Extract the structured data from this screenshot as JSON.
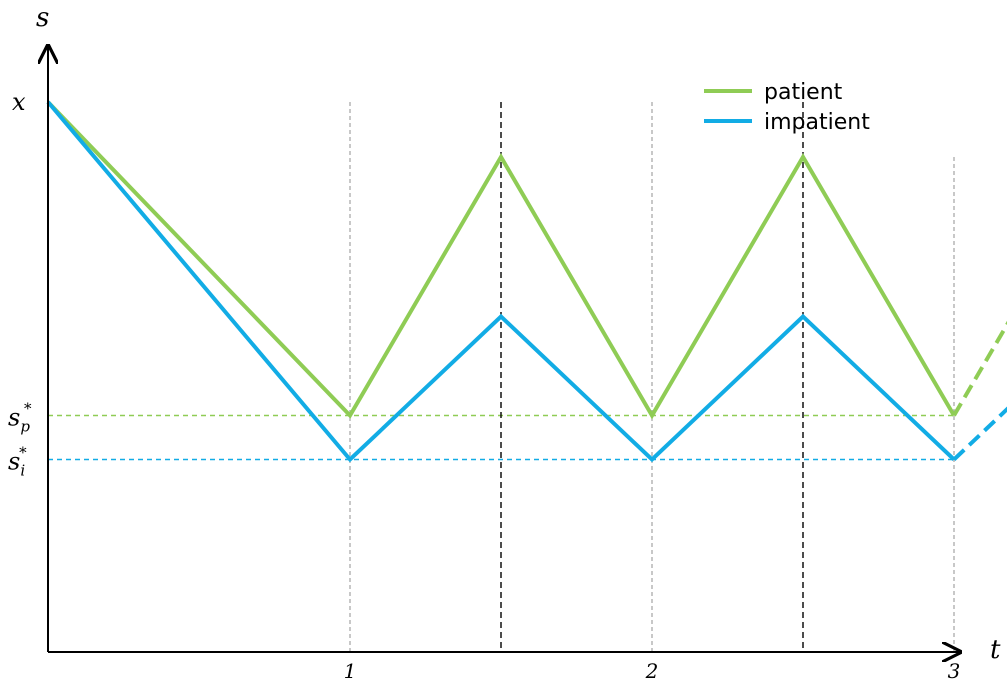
{
  "chart_data": {
    "type": "line",
    "x_axis_label": "t",
    "y_axis_label": "s",
    "x_ticks": [
      "1",
      "2",
      "3"
    ],
    "y_ticks": {
      "x": "x",
      "s_p": {
        "base": "s",
        "sub": "p",
        "sup": "*"
      },
      "s_i": {
        "base": "s",
        "sub": "i",
        "sup": "*"
      }
    },
    "xlim": [
      0,
      3
    ],
    "ylim": [
      0,
      1
    ],
    "levels": {
      "x": 1.0,
      "s_p": 0.43,
      "s_i": 0.35,
      "patient_peak": 0.9,
      "impatient_peak": 0.61
    },
    "legend": {
      "position": "top-right"
    },
    "series": [
      {
        "name": "patient",
        "color": "#8fcc55",
        "points": [
          [
            0,
            1.0
          ],
          [
            1,
            0.43
          ],
          [
            1.5,
            0.9
          ],
          [
            2,
            0.43
          ],
          [
            2.5,
            0.9
          ],
          [
            3,
            0.43
          ]
        ],
        "projection": [
          [
            3,
            0.43
          ],
          [
            3.5,
            0.9
          ]
        ]
      },
      {
        "name": "impatient",
        "color": "#12ace5",
        "points": [
          [
            0,
            1.0
          ],
          [
            1,
            0.35
          ],
          [
            1.5,
            0.61
          ],
          [
            2,
            0.35
          ],
          [
            2.5,
            0.61
          ],
          [
            3,
            0.35
          ]
        ],
        "projection": [
          [
            3,
            0.35
          ],
          [
            3.5,
            0.61
          ]
        ]
      }
    ],
    "reference_lines": {
      "vertical_gray": [
        1,
        2,
        3
      ],
      "vertical_black": [
        1.5,
        2.5
      ]
    }
  }
}
